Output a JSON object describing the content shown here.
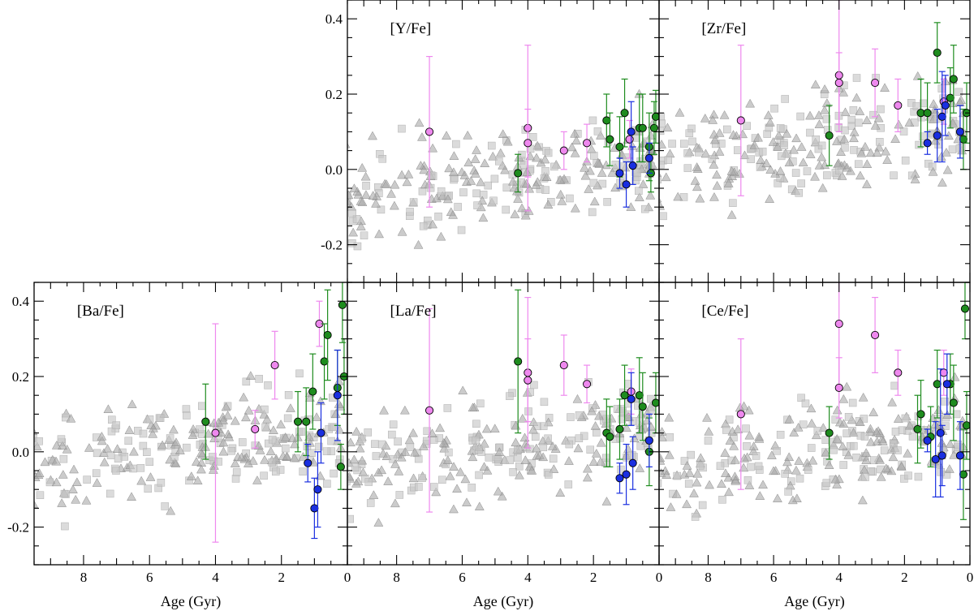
{
  "chart_data": [
    {
      "type": "scatter",
      "panel": "top-middle",
      "title": "[Y/Fe]",
      "xlabel": "",
      "ylabel": "",
      "xlim": [
        9.5,
        0
      ],
      "ylim": [
        -0.3,
        0.45
      ],
      "yticks": [
        0.4,
        0.2,
        0.0,
        -0.2
      ],
      "xticks": [
        8,
        6,
        4,
        2,
        0
      ],
      "show_yticklabels": true,
      "show_xticklabels": false,
      "magenta": [
        {
          "x": 7.0,
          "y": 0.1,
          "lo": -0.1,
          "hi": 0.3
        },
        {
          "x": 4.0,
          "y": 0.11,
          "lo": -0.11,
          "hi": 0.33
        },
        {
          "x": 4.0,
          "y": 0.07,
          "lo": -0.02,
          "hi": 0.16
        },
        {
          "x": 2.9,
          "y": 0.05,
          "lo": 0.0,
          "hi": 0.1
        },
        {
          "x": 2.2,
          "y": 0.07,
          "lo": 0.02,
          "hi": 0.12
        },
        {
          "x": 0.9,
          "y": 0.08,
          "lo": 0.03,
          "hi": 0.13
        }
      ],
      "green": [
        {
          "x": 4.3,
          "y": -0.01,
          "lo": -0.06,
          "hi": 0.04
        },
        {
          "x": 1.6,
          "y": 0.13,
          "lo": 0.06,
          "hi": 0.2
        },
        {
          "x": 1.5,
          "y": 0.08,
          "lo": 0.01,
          "hi": 0.15
        },
        {
          "x": 1.2,
          "y": 0.06,
          "lo": -0.02,
          "hi": 0.14
        },
        {
          "x": 1.05,
          "y": 0.15,
          "lo": 0.06,
          "hi": 0.24
        },
        {
          "x": 0.6,
          "y": 0.11,
          "lo": 0.02,
          "hi": 0.2
        },
        {
          "x": 0.5,
          "y": 0.11,
          "lo": 0.02,
          "hi": 0.2
        },
        {
          "x": 0.3,
          "y": 0.06,
          "lo": -0.03,
          "hi": 0.15
        },
        {
          "x": 0.25,
          "y": -0.01,
          "lo": -0.06,
          "hi": 0.04
        },
        {
          "x": 0.15,
          "y": 0.11,
          "lo": 0.04,
          "hi": 0.18
        },
        {
          "x": 0.1,
          "y": 0.14,
          "lo": 0.07,
          "hi": 0.21
        }
      ],
      "blue": [
        {
          "x": 1.2,
          "y": -0.01,
          "lo": -0.05,
          "hi": 0.03
        },
        {
          "x": 1.0,
          "y": -0.04,
          "lo": -0.1,
          "hi": 0.02
        },
        {
          "x": 0.85,
          "y": 0.1,
          "lo": 0.02,
          "hi": 0.18
        },
        {
          "x": 0.8,
          "y": 0.01,
          "lo": -0.04,
          "hi": 0.06
        },
        {
          "x": 0.3,
          "y": 0.03,
          "lo": -0.01,
          "hi": 0.07
        }
      ]
    },
    {
      "type": "scatter",
      "panel": "top-right",
      "title": "[Zr/Fe]",
      "xlabel": "",
      "ylabel": "",
      "xlim": [
        9.5,
        0
      ],
      "ylim": [
        -0.3,
        0.45
      ],
      "yticks": [
        0.4,
        0.2,
        0.0,
        -0.2
      ],
      "xticks": [
        8,
        6,
        4,
        2,
        0
      ],
      "show_yticklabels": false,
      "show_xticklabels": false,
      "magenta": [
        {
          "x": 7.0,
          "y": 0.13,
          "lo": -0.07,
          "hi": 0.33
        },
        {
          "x": 4.0,
          "y": 0.25,
          "lo": 0.12,
          "hi": 0.45
        },
        {
          "x": 4.0,
          "y": 0.23,
          "lo": 0.1,
          "hi": 0.31
        },
        {
          "x": 2.9,
          "y": 0.23,
          "lo": 0.14,
          "hi": 0.32
        },
        {
          "x": 2.2,
          "y": 0.17,
          "lo": 0.1,
          "hi": 0.24
        },
        {
          "x": 0.8,
          "y": 0.18,
          "lo": 0.12,
          "hi": 0.24
        }
      ],
      "green": [
        {
          "x": 4.3,
          "y": 0.09,
          "lo": 0.01,
          "hi": 0.17
        },
        {
          "x": 1.5,
          "y": 0.15,
          "lo": 0.06,
          "hi": 0.24
        },
        {
          "x": 1.3,
          "y": 0.15,
          "lo": 0.07,
          "hi": 0.23
        },
        {
          "x": 1.0,
          "y": 0.31,
          "lo": 0.23,
          "hi": 0.39
        },
        {
          "x": 0.6,
          "y": 0.19,
          "lo": 0.11,
          "hi": 0.27
        },
        {
          "x": 0.5,
          "y": 0.24,
          "lo": 0.15,
          "hi": 0.33
        },
        {
          "x": 0.2,
          "y": 0.08,
          "lo": 0.0,
          "hi": 0.16
        },
        {
          "x": 0.1,
          "y": 0.15,
          "lo": 0.07,
          "hi": 0.23
        }
      ],
      "blue": [
        {
          "x": 1.3,
          "y": 0.07,
          "lo": 0.04,
          "hi": 0.1
        },
        {
          "x": 1.0,
          "y": 0.09,
          "lo": 0.02,
          "hi": 0.16
        },
        {
          "x": 0.85,
          "y": 0.14,
          "lo": 0.02,
          "hi": 0.26
        },
        {
          "x": 0.75,
          "y": 0.17,
          "lo": 0.09,
          "hi": 0.25
        },
        {
          "x": 0.3,
          "y": 0.1,
          "lo": 0.03,
          "hi": 0.17
        }
      ]
    },
    {
      "type": "scatter",
      "panel": "bottom-left",
      "title": "[Ba/Fe]",
      "xlabel": "Age (Gyr)",
      "ylabel": "",
      "xlim": [
        9.5,
        0
      ],
      "ylim": [
        -0.3,
        0.45
      ],
      "yticks": [
        0.4,
        0.2,
        0.0,
        -0.2
      ],
      "xticks": [
        8,
        6,
        4,
        2,
        0
      ],
      "show_yticklabels": true,
      "show_xticklabels": true,
      "magenta": [
        {
          "x": 4.0,
          "y": 0.05,
          "lo": -0.24,
          "hi": 0.34
        },
        {
          "x": 2.8,
          "y": 0.06,
          "lo": 0.01,
          "hi": 0.11
        },
        {
          "x": 2.2,
          "y": 0.23,
          "lo": 0.14,
          "hi": 0.32
        },
        {
          "x": 0.85,
          "y": 0.34,
          "lo": 0.28,
          "hi": 0.4
        }
      ],
      "green": [
        {
          "x": 4.3,
          "y": 0.08,
          "lo": -0.02,
          "hi": 0.18
        },
        {
          "x": 1.5,
          "y": 0.08,
          "lo": 0.0,
          "hi": 0.16
        },
        {
          "x": 1.25,
          "y": 0.08,
          "lo": -0.01,
          "hi": 0.17
        },
        {
          "x": 1.05,
          "y": 0.16,
          "lo": 0.06,
          "hi": 0.26
        },
        {
          "x": 0.7,
          "y": 0.24,
          "lo": 0.14,
          "hi": 0.34
        },
        {
          "x": 0.6,
          "y": 0.31,
          "lo": 0.19,
          "hi": 0.43
        },
        {
          "x": 0.3,
          "y": 0.17,
          "lo": 0.07,
          "hi": 0.27
        },
        {
          "x": 0.2,
          "y": -0.04,
          "lo": -0.1,
          "hi": 0.02
        },
        {
          "x": 0.15,
          "y": 0.39,
          "lo": 0.29,
          "hi": 0.49
        },
        {
          "x": 0.1,
          "y": 0.2,
          "lo": 0.1,
          "hi": 0.3
        }
      ],
      "blue": [
        {
          "x": 1.2,
          "y": -0.03,
          "lo": -0.08,
          "hi": 0.02
        },
        {
          "x": 1.0,
          "y": -0.15,
          "lo": -0.23,
          "hi": -0.07
        },
        {
          "x": 0.9,
          "y": -0.1,
          "lo": -0.2,
          "hi": 0.0
        },
        {
          "x": 0.8,
          "y": 0.05,
          "lo": -0.03,
          "hi": 0.13
        },
        {
          "x": 0.3,
          "y": 0.15,
          "lo": 0.03,
          "hi": 0.27
        }
      ]
    },
    {
      "type": "scatter",
      "panel": "bottom-middle",
      "title": "[La/Fe]",
      "xlabel": "Age (Gyr)",
      "ylabel": "",
      "xlim": [
        9.5,
        0
      ],
      "ylim": [
        -0.3,
        0.45
      ],
      "yticks": [
        0.4,
        0.2,
        0.0,
        -0.2
      ],
      "xticks": [
        8,
        6,
        4,
        2,
        0
      ],
      "show_yticklabels": false,
      "show_xticklabels": true,
      "magenta": [
        {
          "x": 7.0,
          "y": 0.11,
          "lo": -0.16,
          "hi": 0.38
        },
        {
          "x": 4.0,
          "y": 0.21,
          "lo": 0.01,
          "hi": 0.41
        },
        {
          "x": 4.0,
          "y": 0.19,
          "lo": 0.08,
          "hi": 0.3
        },
        {
          "x": 2.9,
          "y": 0.23,
          "lo": 0.15,
          "hi": 0.31
        },
        {
          "x": 2.2,
          "y": 0.18,
          "lo": 0.13,
          "hi": 0.23
        },
        {
          "x": 0.85,
          "y": 0.16,
          "lo": 0.1,
          "hi": 0.22
        }
      ],
      "green": [
        {
          "x": 4.3,
          "y": 0.24,
          "lo": 0.05,
          "hi": 0.43
        },
        {
          "x": 1.6,
          "y": 0.05,
          "lo": -0.04,
          "hi": 0.14
        },
        {
          "x": 1.5,
          "y": 0.04,
          "lo": -0.04,
          "hi": 0.12
        },
        {
          "x": 1.2,
          "y": 0.06,
          "lo": -0.02,
          "hi": 0.14
        },
        {
          "x": 1.05,
          "y": 0.15,
          "lo": 0.07,
          "hi": 0.23
        },
        {
          "x": 0.6,
          "y": 0.15,
          "lo": 0.05,
          "hi": 0.25
        },
        {
          "x": 0.5,
          "y": 0.12,
          "lo": 0.03,
          "hi": 0.21
        },
        {
          "x": 0.3,
          "y": 0.0,
          "lo": -0.09,
          "hi": 0.09
        },
        {
          "x": 0.1,
          "y": 0.13,
          "lo": 0.05,
          "hi": 0.21
        }
      ],
      "blue": [
        {
          "x": 1.2,
          "y": -0.07,
          "lo": -0.11,
          "hi": -0.03
        },
        {
          "x": 1.0,
          "y": -0.06,
          "lo": -0.14,
          "hi": 0.02
        },
        {
          "x": 0.85,
          "y": 0.14,
          "lo": 0.07,
          "hi": 0.21
        },
        {
          "x": 0.8,
          "y": -0.03,
          "lo": -0.1,
          "hi": 0.04
        },
        {
          "x": 0.3,
          "y": 0.03,
          "lo": -0.04,
          "hi": 0.1
        }
      ]
    },
    {
      "type": "scatter",
      "panel": "bottom-right",
      "title": "[Ce/Fe]",
      "xlabel": "Age (Gyr)",
      "ylabel": "",
      "xlim": [
        9.5,
        0
      ],
      "ylim": [
        -0.3,
        0.45
      ],
      "yticks": [
        0.4,
        0.2,
        0.0,
        -0.2
      ],
      "xticks": [
        8,
        6,
        4,
        2,
        0
      ],
      "show_yticklabels": false,
      "show_xticklabels": true,
      "magenta": [
        {
          "x": 7.0,
          "y": 0.1,
          "lo": -0.1,
          "hi": 0.3
        },
        {
          "x": 4.0,
          "y": 0.34,
          "lo": 0.17,
          "hi": 0.45
        },
        {
          "x": 4.0,
          "y": 0.17,
          "lo": 0.09,
          "hi": 0.25
        },
        {
          "x": 2.9,
          "y": 0.31,
          "lo": 0.21,
          "hi": 0.41
        },
        {
          "x": 2.2,
          "y": 0.21,
          "lo": 0.15,
          "hi": 0.27
        },
        {
          "x": 0.8,
          "y": 0.21,
          "lo": 0.15,
          "hi": 0.27
        }
      ],
      "green": [
        {
          "x": 4.3,
          "y": 0.05,
          "lo": -0.02,
          "hi": 0.12
        },
        {
          "x": 1.6,
          "y": 0.06,
          "lo": -0.03,
          "hi": 0.15
        },
        {
          "x": 1.5,
          "y": 0.1,
          "lo": 0.01,
          "hi": 0.19
        },
        {
          "x": 1.2,
          "y": 0.04,
          "lo": -0.04,
          "hi": 0.12
        },
        {
          "x": 1.0,
          "y": 0.18,
          "lo": 0.09,
          "hi": 0.27
        },
        {
          "x": 0.6,
          "y": 0.18,
          "lo": 0.1,
          "hi": 0.26
        },
        {
          "x": 0.5,
          "y": 0.13,
          "lo": 0.03,
          "hi": 0.23
        },
        {
          "x": 0.2,
          "y": -0.06,
          "lo": -0.18,
          "hi": 0.06
        },
        {
          "x": 0.15,
          "y": 0.38,
          "lo": 0.3,
          "hi": 0.46
        },
        {
          "x": 0.1,
          "y": 0.07,
          "lo": -0.02,
          "hi": 0.16
        }
      ],
      "blue": [
        {
          "x": 1.3,
          "y": 0.03,
          "lo": 0.0,
          "hi": 0.06
        },
        {
          "x": 1.05,
          "y": -0.02,
          "lo": -0.12,
          "hi": 0.08
        },
        {
          "x": 0.9,
          "y": 0.05,
          "lo": -0.12,
          "hi": 0.22
        },
        {
          "x": 0.85,
          "y": -0.01,
          "lo": -0.09,
          "hi": 0.07
        },
        {
          "x": 0.7,
          "y": 0.18,
          "lo": 0.1,
          "hi": 0.26
        },
        {
          "x": 0.3,
          "y": -0.01,
          "lo": -0.1,
          "hi": 0.08
        }
      ]
    }
  ],
  "colors": {
    "magenta": "#ee88ee",
    "green": "#1e8c1e",
    "blue": "#1a2fe0",
    "gray_marker": "#b4b4b4"
  }
}
